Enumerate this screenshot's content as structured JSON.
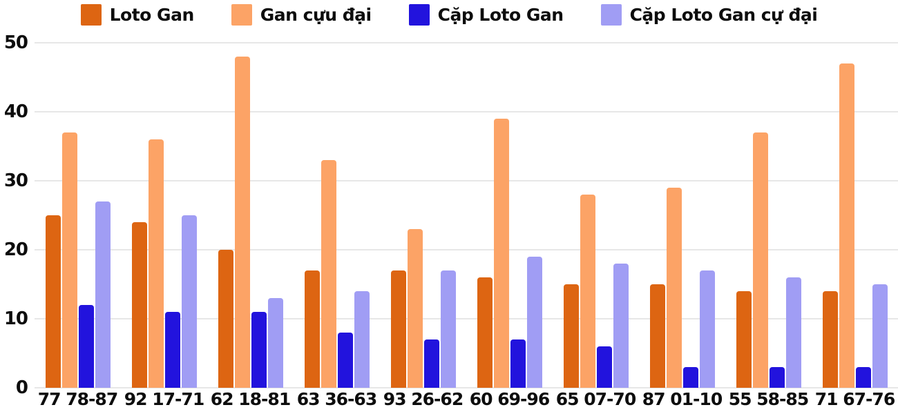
{
  "chart_data": {
    "type": "bar",
    "title": "",
    "xlabel": "",
    "ylabel": "",
    "ylim": [
      0,
      50
    ],
    "yticks": [
      0,
      10,
      20,
      30,
      40,
      50
    ],
    "grid": true,
    "legend_position": "top",
    "categories": [
      "77 78-87",
      "92 17-71",
      "62 18-81",
      "63 36-63",
      "93 26-62",
      "60 69-96",
      "65 07-70",
      "87 01-10",
      "55 58-85",
      "71 67-76"
    ],
    "series": [
      {
        "name": "Loto Gan",
        "color": "#dd6512",
        "values": [
          25,
          24,
          20,
          17,
          17,
          16,
          15,
          15,
          14,
          14
        ]
      },
      {
        "name": "Gan cựu đại",
        "color": "#fca366",
        "values": [
          37,
          36,
          48,
          33,
          23,
          39,
          28,
          29,
          37,
          47
        ]
      },
      {
        "name": "Cặp Loto Gan",
        "color": "#2213dd",
        "values": [
          12,
          11,
          11,
          8,
          7,
          7,
          6,
          3,
          3,
          3
        ]
      },
      {
        "name": "Cặp Loto Gan cự đại",
        "color": "#a09df4",
        "values": [
          27,
          25,
          13,
          14,
          17,
          19,
          18,
          17,
          16,
          15
        ]
      }
    ],
    "colors": {
      "text": "#0d0d0d",
      "gridline": "#e7e7e7",
      "background": "#ffffff"
    }
  }
}
